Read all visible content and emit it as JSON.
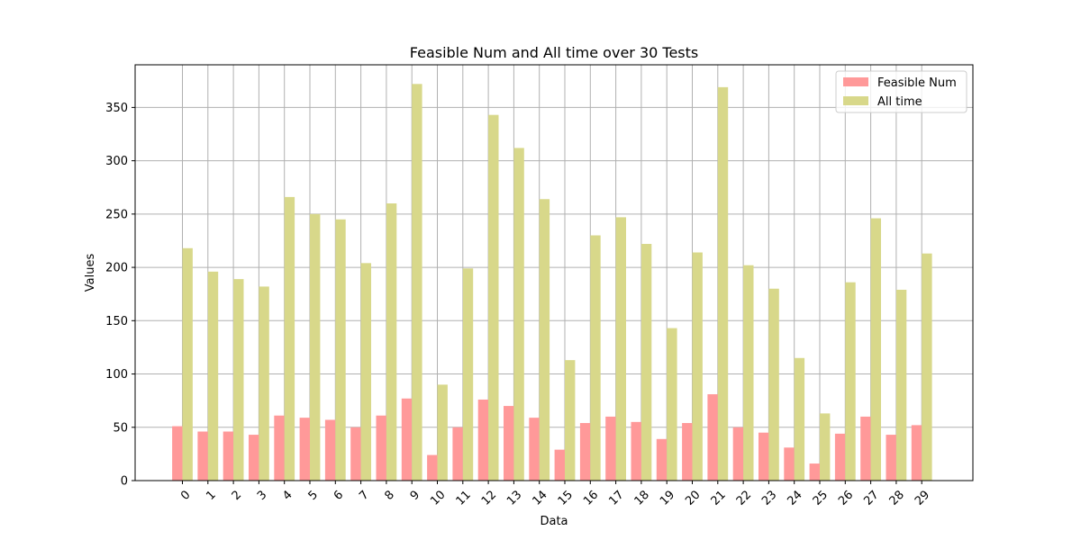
{
  "chart_data": {
    "type": "bar",
    "title": "Feasible Num and All time over 30 Tests",
    "xlabel": "Data",
    "ylabel": "Values",
    "ylim": [
      0,
      390
    ],
    "yticks": [
      0,
      50,
      100,
      150,
      200,
      250,
      300,
      350
    ],
    "grid": true,
    "legend_position": "top-right",
    "categories": [
      "0",
      "1",
      "2",
      "3",
      "4",
      "5",
      "6",
      "7",
      "8",
      "9",
      "10",
      "11",
      "12",
      "13",
      "14",
      "15",
      "16",
      "17",
      "18",
      "19",
      "20",
      "21",
      "22",
      "23",
      "24",
      "25",
      "26",
      "27",
      "28",
      "29"
    ],
    "series": [
      {
        "name": "Feasible Num",
        "color": "#ff9999",
        "values": [
          51,
          46,
          46,
          43,
          61,
          59,
          57,
          50,
          61,
          77,
          24,
          50,
          76,
          70,
          59,
          29,
          54,
          60,
          55,
          39,
          54,
          81,
          50,
          45,
          31,
          16,
          44,
          60,
          43,
          52
        ]
      },
      {
        "name": "All time",
        "color": "#d8d88a",
        "values": [
          218,
          196,
          189,
          182,
          266,
          250,
          245,
          204,
          260,
          372,
          90,
          199,
          343,
          312,
          264,
          113,
          230,
          247,
          222,
          143,
          214,
          369,
          202,
          180,
          115,
          63,
          186,
          246,
          179,
          213
        ]
      }
    ]
  }
}
